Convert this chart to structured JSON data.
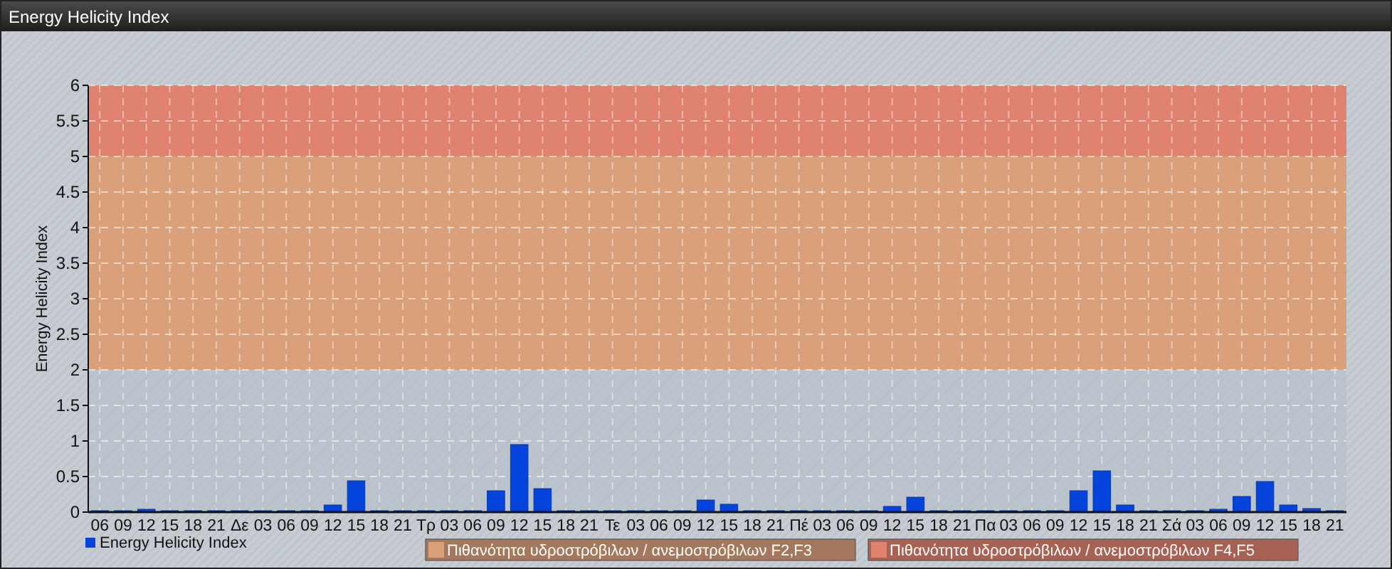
{
  "chart_data": {
    "type": "bar",
    "title": "Energy Helicity Index",
    "ylabel": "Energy Helicity Index",
    "categories": [
      "06",
      "09",
      "12",
      "15",
      "18",
      "21",
      "Δε",
      "03",
      "06",
      "09",
      "12",
      "15",
      "18",
      "21",
      "Τρ",
      "03",
      "06",
      "09",
      "12",
      "15",
      "18",
      "21",
      "Τε",
      "03",
      "06",
      "09",
      "12",
      "15",
      "18",
      "21",
      "Πέ",
      "03",
      "06",
      "09",
      "12",
      "15",
      "18",
      "21",
      "Πα",
      "03",
      "06",
      "09",
      "12",
      "15",
      "18",
      "21",
      "Σά",
      "03",
      "06",
      "09",
      "12",
      "15",
      "18",
      "21"
    ],
    "series": [
      {
        "name": "Energy Helicity Index",
        "color": "#0444dc",
        "values": [
          0.02,
          0.02,
          0.04,
          0.02,
          0.02,
          0.02,
          0.02,
          0.02,
          0.02,
          0.02,
          0.1,
          0.44,
          0.02,
          0.02,
          0.02,
          0.02,
          0.02,
          0.3,
          0.95,
          0.33,
          0.02,
          0.02,
          0.02,
          0.02,
          0.02,
          0.02,
          0.17,
          0.11,
          0.02,
          0.02,
          0.02,
          0.02,
          0.02,
          0.02,
          0.08,
          0.21,
          0.02,
          0.02,
          0.02,
          0.02,
          0.02,
          0.02,
          0.3,
          0.58,
          0.1,
          0.02,
          0.02,
          0.02,
          0.04,
          0.22,
          0.43,
          0.1,
          0.05,
          0.02
        ]
      }
    ],
    "ylim": [
      0,
      6
    ],
    "yticks": [
      0,
      0.5,
      1,
      1.5,
      2,
      2.5,
      3,
      3.5,
      4,
      4.5,
      5,
      5.5,
      6
    ],
    "bands": [
      {
        "axis": "y",
        "from": 2,
        "to": 5,
        "label": "Πιθανότητα υδροστρόβιλων / ανεμοστρόβιλων F2,F3",
        "color": "#d9a07a"
      },
      {
        "axis": "y",
        "from": 5,
        "to": 6,
        "label": "Πιθανότητα υδροστρόβιλων / ανεμοστρόβιλων F4,F5",
        "color": "#e08270"
      }
    ],
    "grid": true,
    "legend": "bottom left"
  }
}
